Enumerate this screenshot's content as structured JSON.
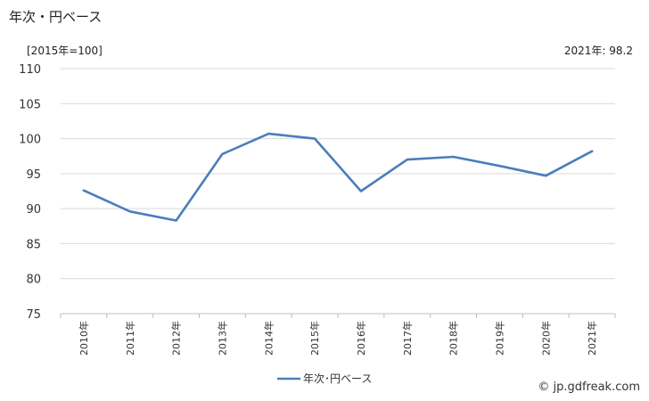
{
  "title": "年次・円ベース",
  "unit_label": "[2015年=100]",
  "latest_label": "2021年: 98.2",
  "credit": "© jp.gdfreak.com",
  "chart_data": {
    "type": "line",
    "categories": [
      "2010年",
      "2011年",
      "2012年",
      "2013年",
      "2014年",
      "2015年",
      "2016年",
      "2017年",
      "2018年",
      "2019年",
      "2020年",
      "2021年"
    ],
    "series": [
      {
        "name": "年次･円ベース",
        "values": [
          92.6,
          89.6,
          88.3,
          97.8,
          100.7,
          100.0,
          92.5,
          97.0,
          97.4,
          96.1,
          94.7,
          98.2
        ],
        "color": "#4a7ebb"
      }
    ],
    "yticks": [
      75,
      80,
      85,
      90,
      95,
      100,
      105,
      110
    ],
    "ylim": [
      75,
      110
    ],
    "grid": true,
    "legend_position": "bottom"
  }
}
